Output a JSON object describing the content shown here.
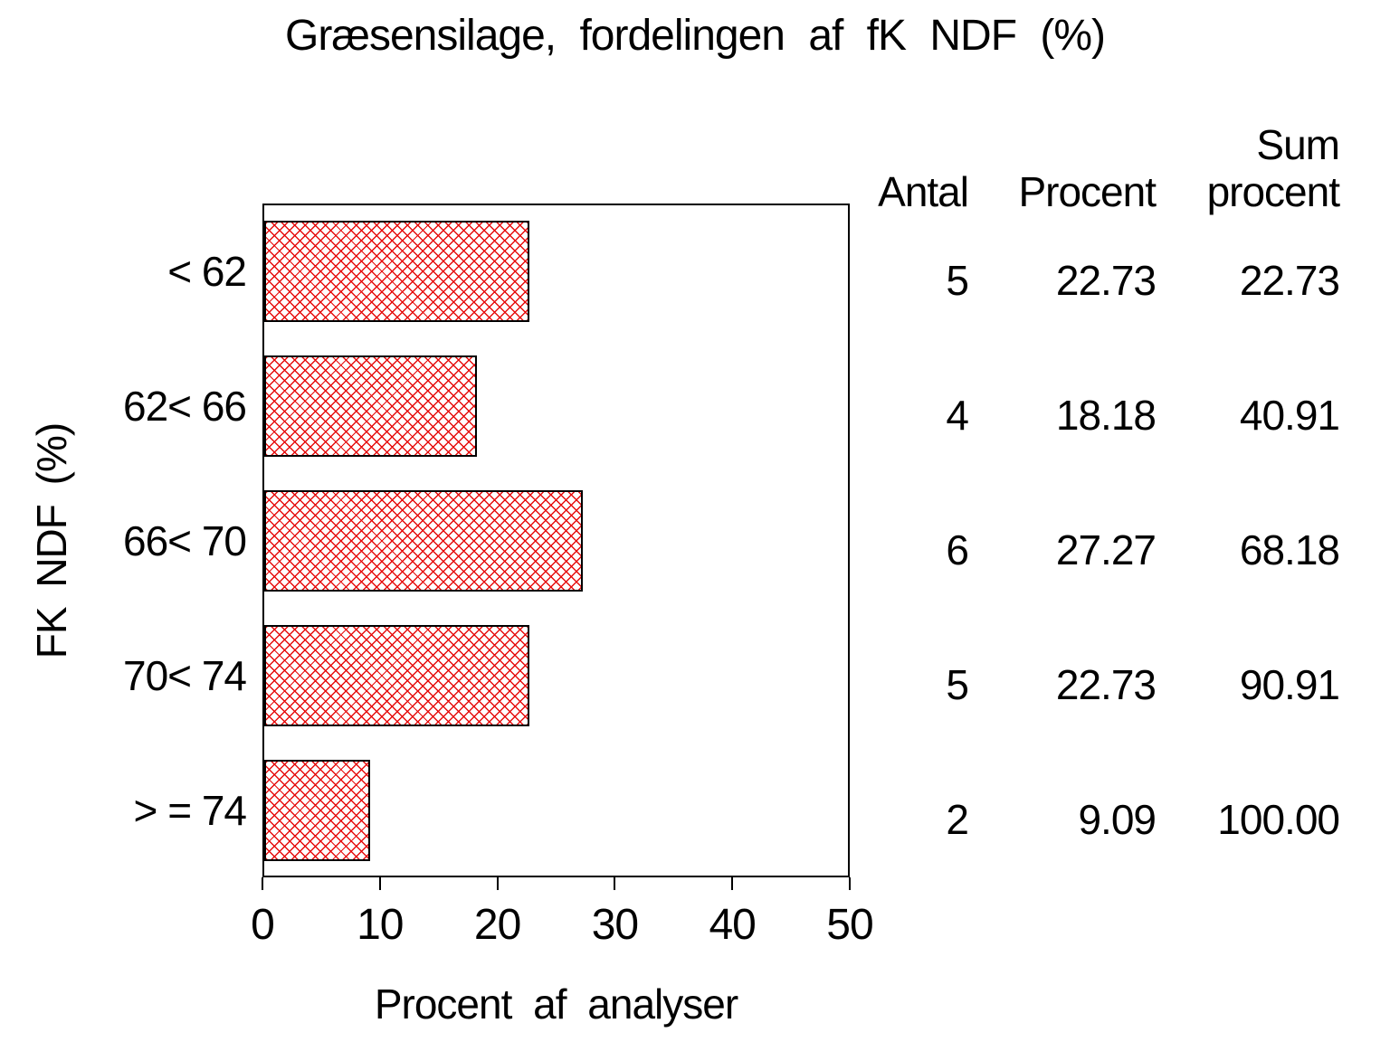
{
  "chart_data": {
    "type": "bar",
    "orientation": "horizontal",
    "title": "Græsensilage, fordelingen af fK NDF (%)",
    "xlabel": "Procent af analyser",
    "ylabel": "FK NDF (%)",
    "categories": [
      "< 62",
      "62< 66",
      "66< 70",
      "70< 74",
      "> = 74"
    ],
    "values": [
      22.73,
      18.18,
      27.27,
      22.73,
      9.09
    ],
    "xlim": [
      0,
      50
    ],
    "xticks": [
      0,
      10,
      20,
      30,
      40,
      50
    ],
    "grid": false,
    "legend": "none",
    "bar_style": "red diagonal crosshatch with black outline",
    "colors": {
      "hatch": "#e60d0d",
      "frame": "#000000",
      "text": "#000000",
      "background": "#ffffff"
    },
    "table": {
      "headers": {
        "antal": "Antal",
        "procent": "Procent",
        "sum_line1": "Sum",
        "sum_line2": "procent"
      },
      "rows": [
        {
          "antal": "5",
          "procent": "22.73",
          "sum": "22.73"
        },
        {
          "antal": "4",
          "procent": "18.18",
          "sum": "40.91"
        },
        {
          "antal": "6",
          "procent": "27.27",
          "sum": "68.18"
        },
        {
          "antal": "5",
          "procent": "22.73",
          "sum": "90.91"
        },
        {
          "antal": "2",
          "procent": "9.09",
          "sum": "100.00"
        }
      ]
    }
  }
}
